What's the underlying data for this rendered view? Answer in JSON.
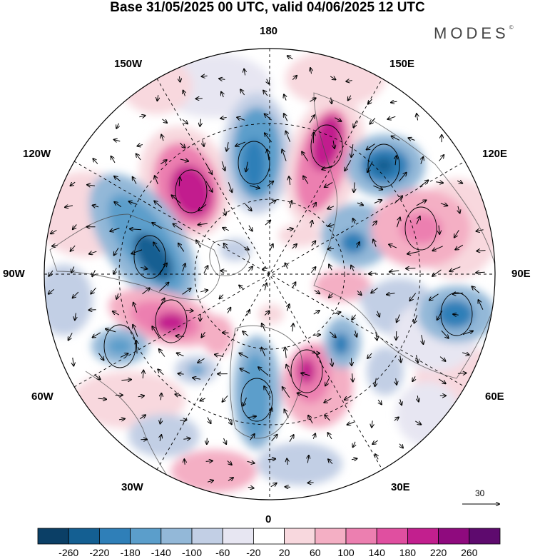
{
  "title": "Base 31/05/2025 00 UTC, valid 04/06/2025 12 UTC",
  "brand": {
    "text": "MODES",
    "mark": "©"
  },
  "longitude_labels": {
    "top": "180",
    "bottom": "0",
    "left": "90W",
    "right": "90E",
    "upper_left_1": "150W",
    "upper_left_2": "120W",
    "lower_left_1": "60W",
    "lower_left_2": "30W",
    "upper_right_1": "150E",
    "upper_right_2": "120E",
    "lower_right_1": "60E",
    "lower_right_2": "30E"
  },
  "reference_vector": {
    "label": "30"
  },
  "colorbar": {
    "labels": [
      "-260",
      "-220",
      "-180",
      "-140",
      "-100",
      "-60",
      "-20",
      "20",
      "60",
      "100",
      "140",
      "180",
      "220",
      "260"
    ],
    "colors": [
      "#0b3f66",
      "#145f92",
      "#2f7fb8",
      "#5b9ecb",
      "#93b8d8",
      "#c2cfe5",
      "#e7e6f2",
      "#ffffff",
      "#f8d8de",
      "#f4afc4",
      "#ec7fb0",
      "#e04fa0",
      "#c21f8e",
      "#8f0a7e",
      "#5e0a6e"
    ]
  }
}
